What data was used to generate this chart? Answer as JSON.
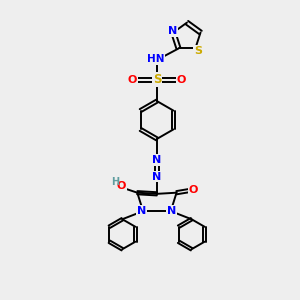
{
  "bg_color": "#eeeeee",
  "atom_colors": {
    "N": "#0000ff",
    "O": "#ff0000",
    "S": "#ccaa00",
    "H": "#5f9ea0",
    "C": "#000000"
  },
  "bond_color": "#000000",
  "figsize": [
    3.0,
    3.0
  ],
  "dpi": 100
}
